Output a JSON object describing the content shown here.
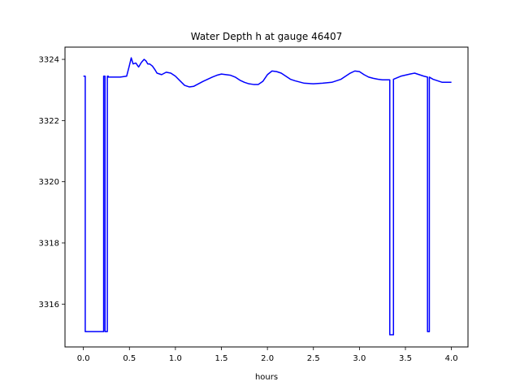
{
  "chart_data": {
    "type": "line",
    "title": "Water Depth h at gauge 46407",
    "xlabel": "hours",
    "ylabel": "",
    "xlim": [
      -0.2,
      4.18
    ],
    "ylim": [
      3314.6,
      3324.4
    ],
    "xticks": [
      0.0,
      0.5,
      1.0,
      1.5,
      2.0,
      2.5,
      3.0,
      3.5,
      4.0
    ],
    "xtick_labels": [
      "0.0",
      "0.5",
      "1.0",
      "1.5",
      "2.0",
      "2.5",
      "3.0",
      "3.5",
      "4.0"
    ],
    "yticks": [
      3316,
      3318,
      3320,
      3322,
      3324
    ],
    "ytick_labels": [
      "3316",
      "3318",
      "3320",
      "3322",
      "3324"
    ],
    "grid": false,
    "series": [
      {
        "color": "#0000ff",
        "x": [
          0.0,
          0.02,
          0.02,
          0.22,
          0.22,
          0.235,
          0.235,
          0.26,
          0.26,
          0.27,
          0.27,
          0.3,
          0.4,
          0.47,
          0.5,
          0.52,
          0.54,
          0.57,
          0.6,
          0.63,
          0.66,
          0.68,
          0.7,
          0.72,
          0.75,
          0.78,
          0.8,
          0.85,
          0.9,
          0.95,
          1.0,
          1.05,
          1.1,
          1.15,
          1.2,
          1.25,
          1.3,
          1.35,
          1.4,
          1.45,
          1.5,
          1.55,
          1.6,
          1.65,
          1.7,
          1.75,
          1.8,
          1.85,
          1.9,
          1.95,
          2.0,
          2.05,
          2.1,
          2.15,
          2.2,
          2.25,
          2.3,
          2.4,
          2.5,
          2.6,
          2.7,
          2.8,
          2.9,
          2.95,
          3.0,
          3.05,
          3.1,
          3.15,
          3.2,
          3.25,
          3.3,
          3.33,
          3.33,
          3.37,
          3.37,
          3.45,
          3.55,
          3.6,
          3.7,
          3.74,
          3.74,
          3.76,
          3.76,
          3.8,
          3.9,
          4.0
        ],
        "y": [
          3323.45,
          3323.45,
          3315.1,
          3315.1,
          3323.45,
          3323.45,
          3315.1,
          3315.1,
          3323.45,
          3323.45,
          3323.42,
          3323.42,
          3323.42,
          3323.45,
          3323.8,
          3324.05,
          3323.85,
          3323.88,
          3323.75,
          3323.9,
          3324.0,
          3323.95,
          3323.85,
          3323.85,
          3323.78,
          3323.65,
          3323.55,
          3323.5,
          3323.58,
          3323.55,
          3323.45,
          3323.3,
          3323.15,
          3323.1,
          3323.12,
          3323.2,
          3323.28,
          3323.35,
          3323.42,
          3323.48,
          3323.52,
          3323.5,
          3323.48,
          3323.42,
          3323.32,
          3323.25,
          3323.2,
          3323.18,
          3323.18,
          3323.28,
          3323.5,
          3323.62,
          3323.6,
          3323.55,
          3323.45,
          3323.35,
          3323.3,
          3323.22,
          3323.2,
          3323.22,
          3323.25,
          3323.35,
          3323.55,
          3323.62,
          3323.6,
          3323.5,
          3323.42,
          3323.38,
          3323.35,
          3323.33,
          3323.33,
          3323.33,
          3315.0,
          3315.0,
          3323.35,
          3323.45,
          3323.52,
          3323.55,
          3323.45,
          3323.42,
          3315.1,
          3315.1,
          3323.42,
          3323.35,
          3323.25,
          3323.25
        ]
      }
    ]
  }
}
